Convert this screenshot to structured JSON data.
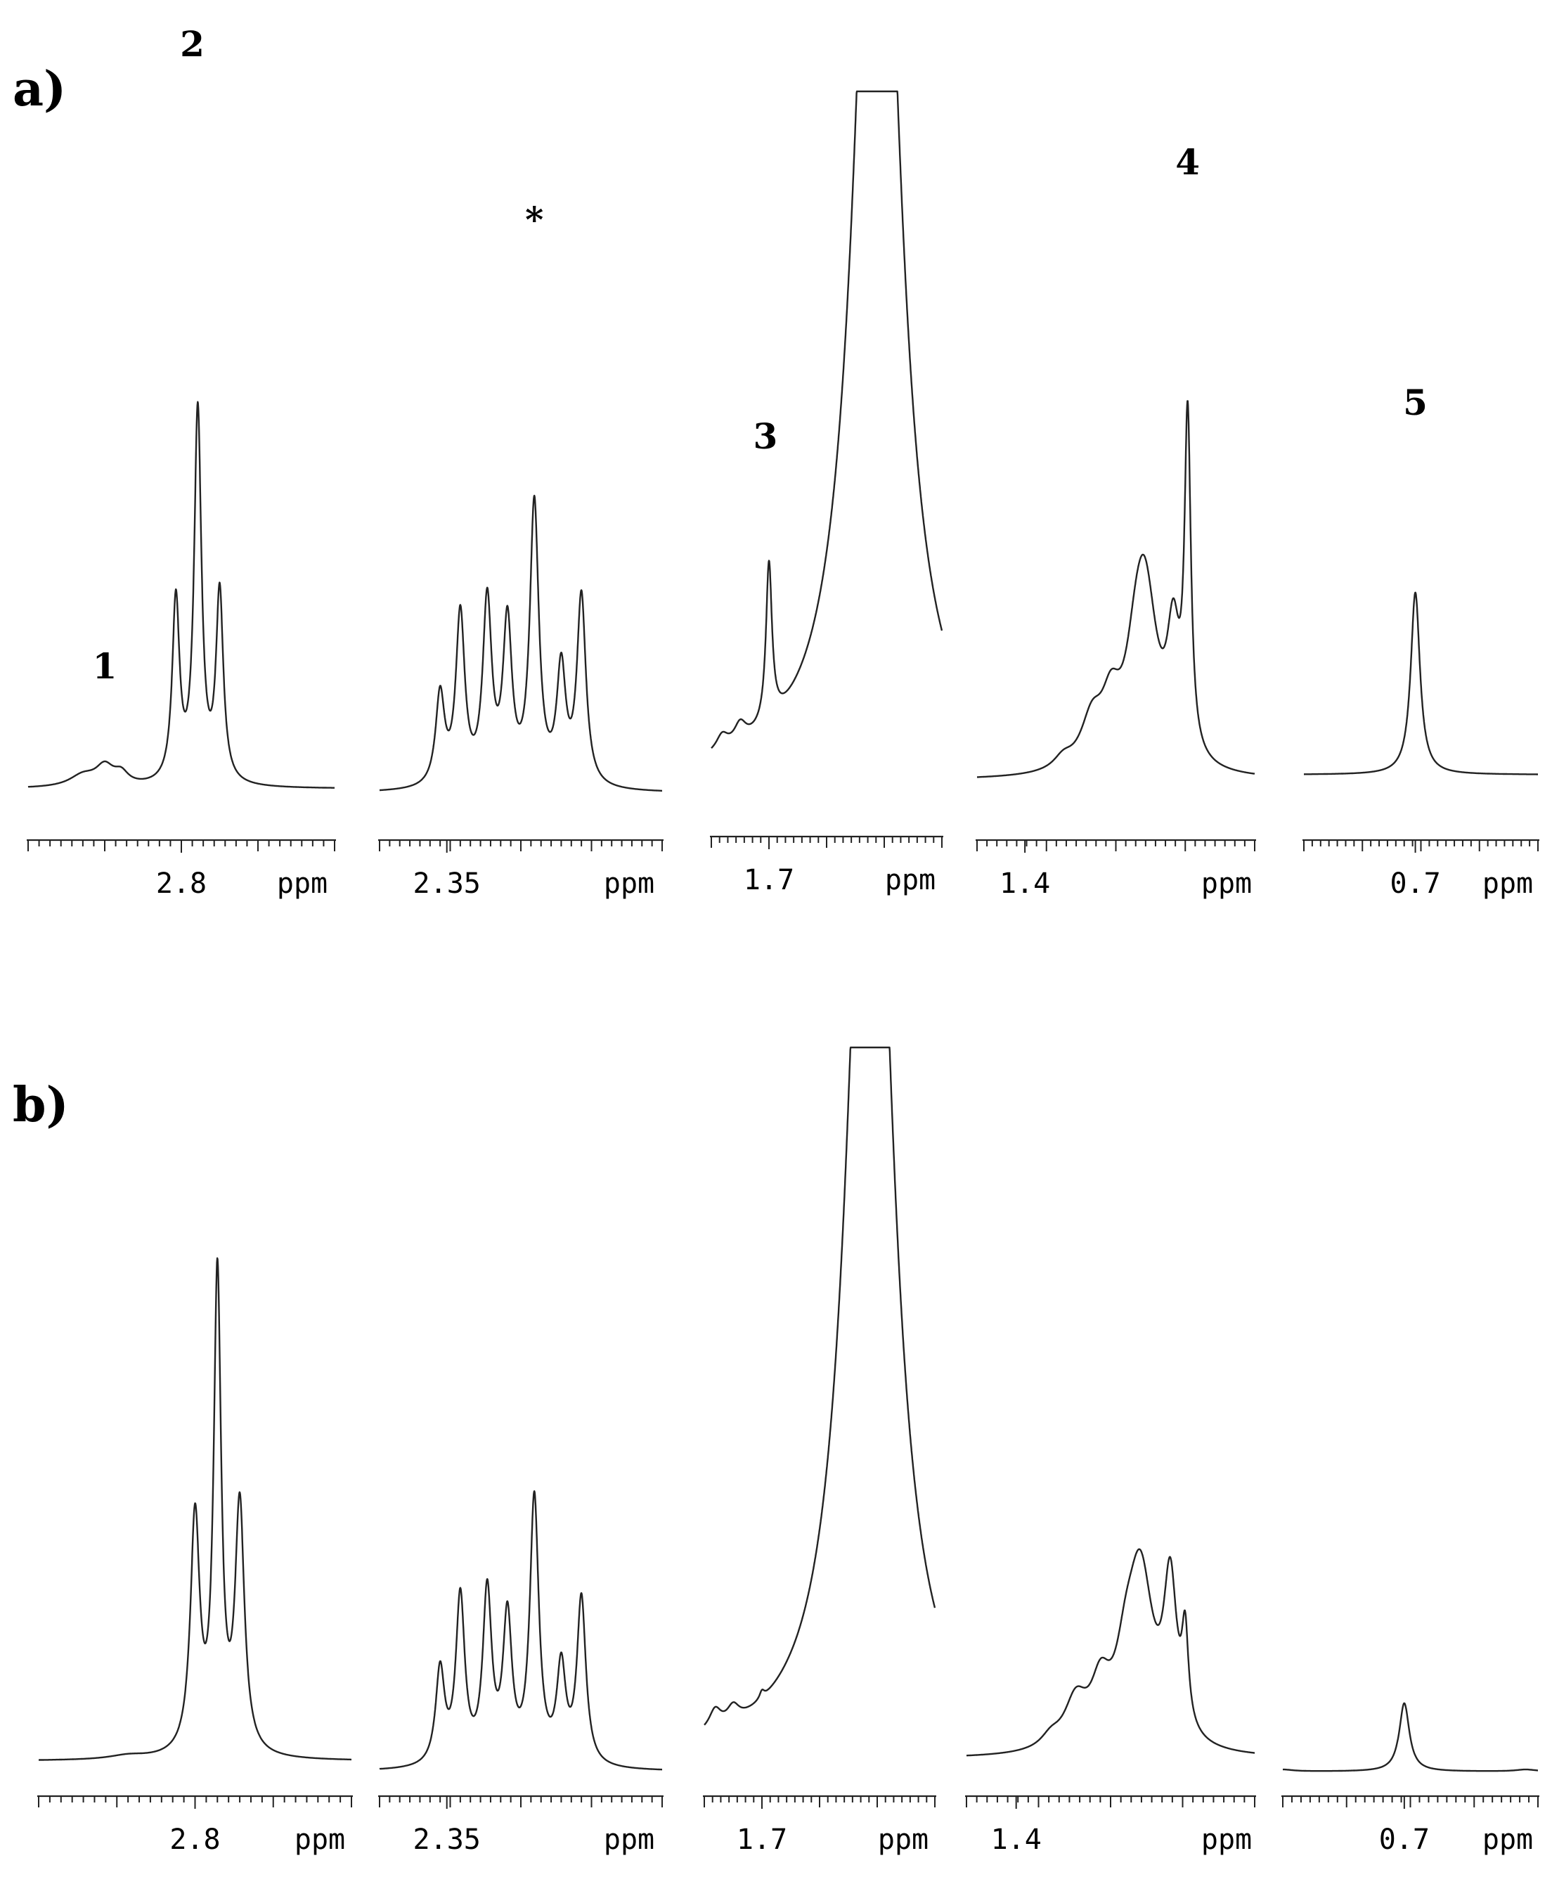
{
  "chart_data": {
    "type": "line",
    "unit": "ppm",
    "panels": [
      {
        "label": "a)",
        "segments": [
          {
            "tick_label": "2.8",
            "unit": "ppm",
            "peak_labels": [
              {
                "text": "1",
                "x": 2.87
              },
              {
                "text": "2",
                "x": 2.79
              }
            ],
            "peaks": [
              [
                2.89,
                0.03,
                0.015
              ],
              [
                2.87,
                0.05,
                0.01
              ],
              [
                2.855,
                0.03,
                0.008
              ],
              [
                2.805,
                0.48,
                0.004
              ],
              [
                2.785,
                0.98,
                0.004
              ],
              [
                2.765,
                0.5,
                0.004
              ]
            ]
          },
          {
            "tick_label": "2.35",
            "unit": "ppm",
            "peak_labels": [
              {
                "text": "*",
                "x": 2.285
              }
            ],
            "peaks": [
              [
                2.355,
                0.24,
                0.004
              ],
              [
                2.34,
                0.45,
                0.004
              ],
              [
                2.32,
                0.48,
                0.004
              ],
              [
                2.305,
                0.42,
                0.004
              ],
              [
                2.285,
                0.74,
                0.004
              ],
              [
                2.265,
                0.3,
                0.004
              ],
              [
                2.25,
                0.5,
                0.004
              ]
            ]
          },
          {
            "tick_label": "1.7",
            "unit": "ppm",
            "peak_labels": [
              {
                "text": "3",
                "x": 1.705
              }
            ],
            "peaks": [
              [
                1.765,
                0.04,
                0.01
              ],
              [
                1.74,
                0.05,
                0.01
              ],
              [
                1.7,
                0.42,
                0.005
              ],
              [
                1.55,
                3.0,
                0.035
              ]
            ]
          },
          {
            "tick_label": "1.4",
            "unit": "ppm",
            "peak_labels": [
              {
                "text": "4",
                "x": 1.23
              }
            ],
            "peaks": [
              [
                1.36,
                0.03,
                0.012
              ],
              [
                1.33,
                0.12,
                0.014
              ],
              [
                1.31,
                0.14,
                0.012
              ],
              [
                1.285,
                0.12,
                0.012
              ],
              [
                1.275,
                0.47,
                0.016
              ],
              [
                1.245,
                0.3,
                0.008
              ],
              [
                1.23,
                0.87,
                0.004
              ]
            ]
          },
          {
            "tick_label": "0.7",
            "unit": "ppm",
            "peak_labels": [
              {
                "text": "5",
                "x": 0.7
              }
            ],
            "peaks": [
              [
                0.7,
                0.48,
                0.005
              ]
            ]
          }
        ]
      },
      {
        "label": "b)",
        "segments": [
          {
            "tick_label": "2.8",
            "unit": "ppm",
            "peak_labels": [],
            "peaks": [
              [
                2.8,
                0.62,
                0.005
              ],
              [
                2.78,
                1.25,
                0.004
              ],
              [
                2.76,
                0.65,
                0.005
              ],
              [
                2.86,
                0.01,
                0.02
              ]
            ]
          },
          {
            "tick_label": "2.35",
            "unit": "ppm",
            "peak_labels": [],
            "peaks": [
              [
                2.355,
                0.25,
                0.004
              ],
              [
                2.34,
                0.44,
                0.004
              ],
              [
                2.32,
                0.45,
                0.004
              ],
              [
                2.305,
                0.38,
                0.004
              ],
              [
                2.285,
                0.7,
                0.004
              ],
              [
                2.265,
                0.25,
                0.004
              ],
              [
                2.25,
                0.44,
                0.004
              ]
            ]
          },
          {
            "tick_label": "1.7",
            "unit": "ppm",
            "peak_labels": [],
            "peaks": [
              [
                1.765,
                0.05,
                0.01
              ],
              [
                1.74,
                0.04,
                0.01
              ],
              [
                1.7,
                0.02,
                0.004
              ],
              [
                1.55,
                3.0,
                0.035
              ]
            ]
          },
          {
            "tick_label": "1.4",
            "unit": "ppm",
            "peak_labels": [],
            "peaks": [
              [
                1.365,
                0.03,
                0.012
              ],
              [
                1.34,
                0.12,
                0.014
              ],
              [
                1.315,
                0.14,
                0.012
              ],
              [
                1.29,
                0.14,
                0.012
              ],
              [
                1.275,
                0.45,
                0.016
              ],
              [
                1.245,
                0.4,
                0.008
              ],
              [
                1.23,
                0.24,
                0.004
              ]
            ]
          },
          {
            "tick_label": "0.7",
            "unit": "ppm",
            "peak_labels": [],
            "peaks": [
              [
                0.7,
                0.18,
                0.005
              ],
              [
                0.8,
                0.005,
                0.01
              ],
              [
                0.6,
                0.005,
                0.01
              ]
            ]
          }
        ]
      }
    ]
  }
}
